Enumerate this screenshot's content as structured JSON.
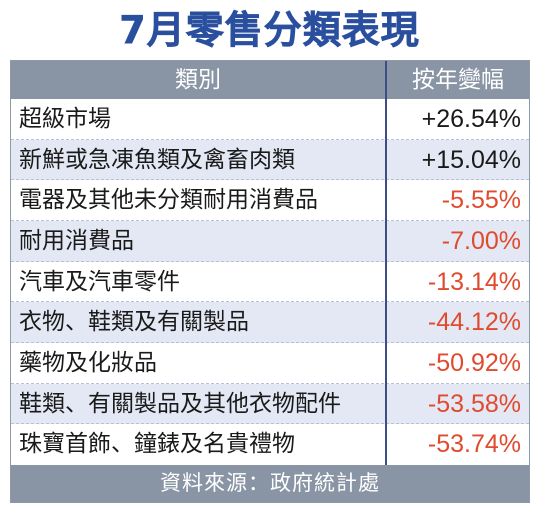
{
  "title": "7月零售分類表現",
  "chart_data": {
    "type": "table",
    "title": "7月零售分類表現",
    "columns": [
      "類別",
      "按年變幅"
    ],
    "rows": [
      {
        "category": "超級市場",
        "value": 26.54,
        "display": "+26.54%"
      },
      {
        "category": "新鮮或急凍魚類及禽畜肉類",
        "value": 15.04,
        "display": "+15.04%"
      },
      {
        "category": "電器及其他未分類耐用消費品",
        "value": -5.55,
        "display": "-5.55%"
      },
      {
        "category": "耐用消費品",
        "value": -7.0,
        "display": "-7.00%"
      },
      {
        "category": "汽車及汽車零件",
        "value": -13.14,
        "display": "-13.14%"
      },
      {
        "category": "衣物、鞋類及有關製品",
        "value": -44.12,
        "display": "-44.12%"
      },
      {
        "category": "藥物及化妝品",
        "value": -50.92,
        "display": "-50.92%"
      },
      {
        "category": "鞋類、有關製品及其他衣物配件",
        "value": -53.58,
        "display": "-53.58%"
      },
      {
        "category": "珠寶首飾、鐘錶及名貴禮物",
        "value": -53.74,
        "display": "-53.74%"
      }
    ],
    "source": "資料來源：政府統計處"
  },
  "colors": {
    "title": "#2a4f9e",
    "header_bg": "#8995a5",
    "alt_row_bg": "#e3e8f4",
    "positive": "#1a1a1a",
    "negative": "#e04a2f",
    "divider": "#3b4f86"
  }
}
